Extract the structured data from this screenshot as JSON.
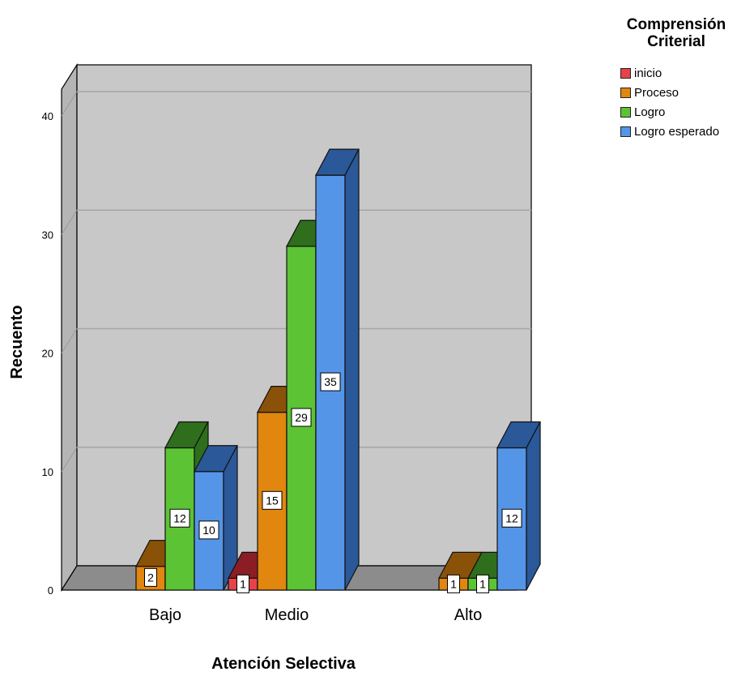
{
  "chart_data": {
    "type": "bar",
    "subtype": "3d-clustered",
    "categories": [
      "Bajo",
      "Medio",
      "Alto"
    ],
    "series": [
      {
        "name": "inicio",
        "color": "#e8414a",
        "side_color": "#8b1e24",
        "values": [
          0,
          1,
          0
        ]
      },
      {
        "name": "Proceso",
        "color": "#e1860f",
        "side_color": "#8a5208",
        "values": [
          2,
          15,
          1
        ]
      },
      {
        "name": "Logro",
        "color": "#5cc335",
        "side_color": "#2f6e1c",
        "values": [
          12,
          29,
          1
        ]
      },
      {
        "name": "Logro esperado",
        "color": "#5595e8",
        "side_color": "#2b5898",
        "values": [
          10,
          35,
          12
        ]
      }
    ],
    "ylim": [
      0,
      40
    ],
    "yticks": [
      "0",
      "10",
      "20",
      "30",
      "40"
    ],
    "xlabel": "Atención Selectiva",
    "ylabel": "Recuento",
    "legend_title": "Comprensión Criterial",
    "legend_position": "top-right",
    "grid": true,
    "data_labels": true,
    "wall_color": "#c8c8c8",
    "floor_color": "#8c8c8c"
  }
}
